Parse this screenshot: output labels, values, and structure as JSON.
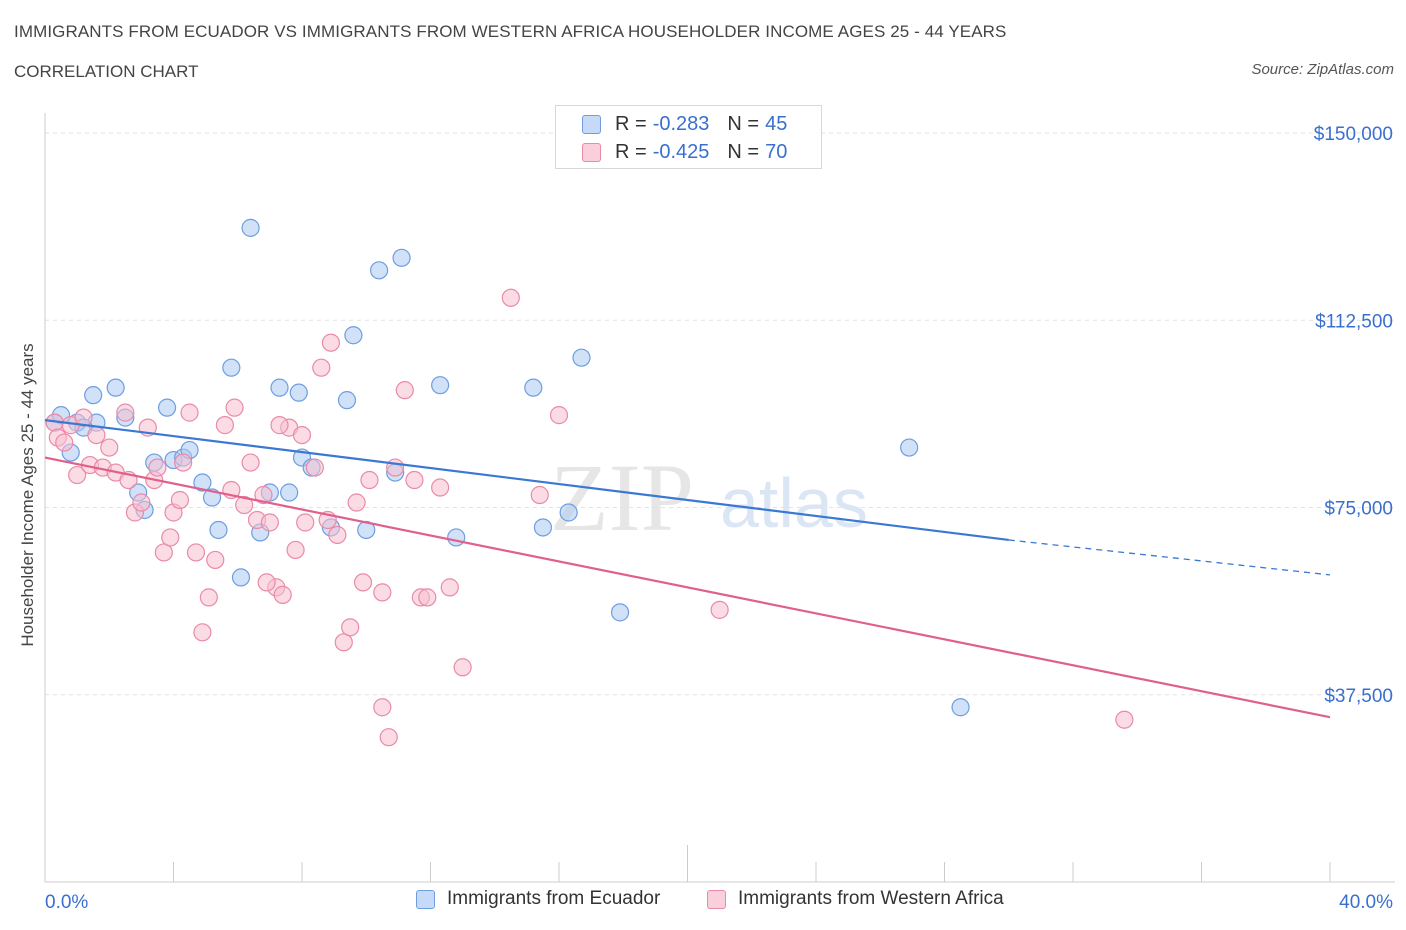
{
  "header": {
    "title": "IMMIGRANTS FROM ECUADOR VS IMMIGRANTS FROM WESTERN AFRICA HOUSEHOLDER INCOME AGES 25 - 44 YEARS",
    "subtitle": "CORRELATION CHART",
    "source": "Source: ZipAtlas.com"
  },
  "legend_top": {
    "rows": [
      {
        "r_label": "R =",
        "r_value": "-0.283",
        "n_label": "N =",
        "n_value": "45",
        "color": "#a9c8f3",
        "stroke": "#6e9ee0"
      },
      {
        "r_label": "R =",
        "r_value": "-0.425",
        "n_label": "N =",
        "n_value": "70",
        "color": "#f7bfd0",
        "stroke": "#e98aa8"
      }
    ]
  },
  "watermark": {
    "zip": "ZIP",
    "atlas": "atlas"
  },
  "chart_data": {
    "type": "scatter",
    "title": "IMMIGRANTS FROM ECUADOR VS IMMIGRANTS FROM WESTERN AFRICA HOUSEHOLDER INCOME AGES 25 - 44 YEARS",
    "xlabel": "",
    "ylabel": "Householder Income Ages 25 - 44 years",
    "xlim": [
      0,
      40
    ],
    "ylim": [
      0,
      150000
    ],
    "x_tick_labels": [
      "0.0%",
      "40.0%"
    ],
    "y_ticks": [
      37500,
      75000,
      112500,
      150000
    ],
    "y_tick_labels": [
      "$37,500",
      "$75,000",
      "$112,500",
      "$150,000"
    ],
    "grid": true,
    "legend_position": "bottom",
    "series": [
      {
        "name": "Immigrants from Ecuador",
        "color": "#a9c8f3",
        "stroke": "#6e9ee0",
        "line_color": "#3a78d4",
        "trend": {
          "x0": 0,
          "y0": 92500,
          "x1": 30,
          "y1": 68500,
          "dash_to": 40,
          "dash_y": 61500
        },
        "points": [
          [
            0.3,
            92000
          ],
          [
            0.5,
            93500
          ],
          [
            0.8,
            86000
          ],
          [
            1.0,
            92000
          ],
          [
            1.5,
            97500
          ],
          [
            1.6,
            92000
          ],
          [
            2.2,
            99000
          ],
          [
            2.5,
            93000
          ],
          [
            2.9,
            78000
          ],
          [
            3.1,
            74500
          ],
          [
            3.4,
            84000
          ],
          [
            3.8,
            95000
          ],
          [
            4.0,
            84500
          ],
          [
            4.3,
            85000
          ],
          [
            4.5,
            86500
          ],
          [
            4.9,
            80000
          ],
          [
            5.2,
            77000
          ],
          [
            5.4,
            70500
          ],
          [
            5.8,
            103000
          ],
          [
            6.1,
            61000
          ],
          [
            6.4,
            131000
          ],
          [
            6.7,
            70000
          ],
          [
            7.0,
            78000
          ],
          [
            7.3,
            99000
          ],
          [
            7.6,
            78000
          ],
          [
            7.9,
            98000
          ],
          [
            8.0,
            85000
          ],
          [
            8.3,
            83000
          ],
          [
            8.9,
            71000
          ],
          [
            9.4,
            96500
          ],
          [
            9.6,
            109500
          ],
          [
            10.0,
            70500
          ],
          [
            10.4,
            122500
          ],
          [
            10.9,
            82000
          ],
          [
            11.1,
            125000
          ],
          [
            12.3,
            99500
          ],
          [
            12.8,
            69000
          ],
          [
            15.2,
            99000
          ],
          [
            15.5,
            71000
          ],
          [
            16.3,
            74000
          ],
          [
            16.7,
            105000
          ],
          [
            17.9,
            54000
          ],
          [
            26.9,
            87000
          ],
          [
            28.5,
            35000
          ],
          [
            1.2,
            91000
          ]
        ]
      },
      {
        "name": "Immigrants from Western Africa",
        "color": "#f7bfd0",
        "stroke": "#e98aa8",
        "line_color": "#e0608d",
        "trend": {
          "x0": 0,
          "y0": 85000,
          "x1": 40,
          "y1": 33000
        },
        "points": [
          [
            0.3,
            92000
          ],
          [
            0.4,
            89000
          ],
          [
            0.6,
            88000
          ],
          [
            0.8,
            91500
          ],
          [
            1.0,
            81500
          ],
          [
            1.2,
            93000
          ],
          [
            1.4,
            83500
          ],
          [
            1.6,
            89500
          ],
          [
            1.8,
            83000
          ],
          [
            2.0,
            87000
          ],
          [
            2.2,
            82000
          ],
          [
            2.5,
            94000
          ],
          [
            2.8,
            74000
          ],
          [
            3.0,
            76000
          ],
          [
            3.2,
            91000
          ],
          [
            3.4,
            80500
          ],
          [
            3.5,
            83000
          ],
          [
            3.7,
            66000
          ],
          [
            4.0,
            74000
          ],
          [
            4.2,
            76500
          ],
          [
            4.3,
            84000
          ],
          [
            4.5,
            94000
          ],
          [
            4.7,
            66000
          ],
          [
            4.9,
            50000
          ],
          [
            5.1,
            57000
          ],
          [
            5.3,
            64500
          ],
          [
            5.6,
            91500
          ],
          [
            5.8,
            78500
          ],
          [
            5.9,
            95000
          ],
          [
            6.2,
            75500
          ],
          [
            6.4,
            84000
          ],
          [
            6.6,
            72500
          ],
          [
            6.8,
            77500
          ],
          [
            7.0,
            72000
          ],
          [
            7.2,
            59000
          ],
          [
            7.4,
            57500
          ],
          [
            7.6,
            91000
          ],
          [
            7.8,
            66500
          ],
          [
            8.0,
            89500
          ],
          [
            8.1,
            72000
          ],
          [
            8.4,
            83000
          ],
          [
            8.6,
            103000
          ],
          [
            8.8,
            72500
          ],
          [
            8.9,
            108000
          ],
          [
            9.1,
            69500
          ],
          [
            9.3,
            48000
          ],
          [
            9.5,
            51000
          ],
          [
            9.7,
            76000
          ],
          [
            9.9,
            60000
          ],
          [
            10.1,
            80500
          ],
          [
            10.5,
            35000
          ],
          [
            10.7,
            29000
          ],
          [
            10.9,
            83000
          ],
          [
            11.2,
            98500
          ],
          [
            11.5,
            80500
          ],
          [
            11.7,
            57000
          ],
          [
            11.9,
            57000
          ],
          [
            12.3,
            79000
          ],
          [
            12.6,
            59000
          ],
          [
            13.0,
            43000
          ],
          [
            14.5,
            117000
          ],
          [
            15.4,
            77500
          ],
          [
            16.0,
            93500
          ],
          [
            21.0,
            54500
          ],
          [
            33.6,
            32500
          ],
          [
            7.3,
            91500
          ],
          [
            2.6,
            80500
          ],
          [
            10.5,
            58000
          ],
          [
            3.9,
            69000
          ],
          [
            6.9,
            60000
          ]
        ]
      }
    ]
  }
}
